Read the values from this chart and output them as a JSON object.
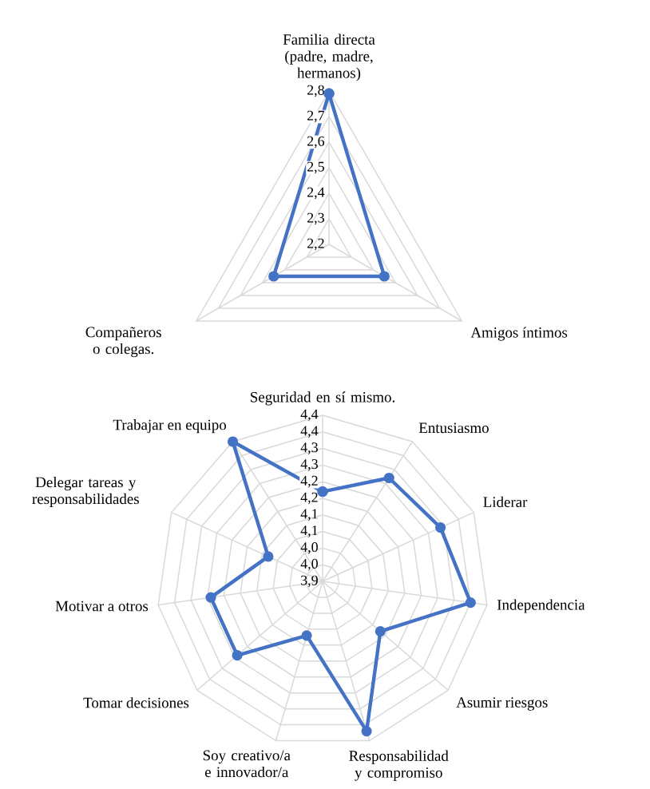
{
  "chart_data": [
    {
      "type": "radar",
      "categories": [
        "Familia directa (padre, madre, hermanos)",
        "Amigos íntimos",
        "Compañeros o colegas."
      ],
      "series": [
        {
          "color": "#4472c4",
          "values": [
            2.79,
            2.45,
            2.45
          ]
        }
      ],
      "ylim": [
        2.2,
        2.8
      ],
      "yticks": [
        {
          "value": 2.2,
          "label": "2,2"
        },
        {
          "value": 2.3,
          "label": "2,3"
        },
        {
          "value": 2.4,
          "label": "2,4"
        },
        {
          "value": 2.5,
          "label": "2,5"
        },
        {
          "value": 2.6,
          "label": "2,6"
        },
        {
          "value": 2.7,
          "label": "2,7"
        },
        {
          "value": 2.8,
          "label": "2,8"
        }
      ],
      "grid": true,
      "marker": "circle"
    },
    {
      "type": "radar",
      "categories": [
        "Seguridad en sí mismo.",
        "Entusiasmo",
        "Liderar",
        "Independencia",
        "Asumir riesgos",
        "Responsabilidad y compromiso",
        "Soy creativo/a e innovador/a",
        "Tomar decisiones",
        "Motivar a otros",
        "Delegar tareas y responsabilidades",
        "Trabajar en equipo"
      ],
      "series": [
        {
          "color": "#4472c4",
          "values": [
            4.17,
            4.27,
            4.29,
            4.35,
            4.13,
            4.37,
            4.07,
            4.24,
            4.24,
            4.08,
            4.4
          ]
        }
      ],
      "ylim": [
        3.9,
        4.4
      ],
      "yticks": [
        {
          "value": 3.9,
          "label": "3,9"
        },
        {
          "value": 3.95,
          "label": "4,0"
        },
        {
          "value": 4.0,
          "label": "4,0"
        },
        {
          "value": 4.05,
          "label": "4,1"
        },
        {
          "value": 4.1,
          "label": "4,1"
        },
        {
          "value": 4.15,
          "label": "4,2"
        },
        {
          "value": 4.2,
          "label": "4,2"
        },
        {
          "value": 4.25,
          "label": "4,3"
        },
        {
          "value": 4.3,
          "label": "4,3"
        },
        {
          "value": 4.35,
          "label": "4,4"
        },
        {
          "value": 4.4,
          "label": "4,4"
        }
      ],
      "grid": true,
      "marker": "circle"
    }
  ]
}
